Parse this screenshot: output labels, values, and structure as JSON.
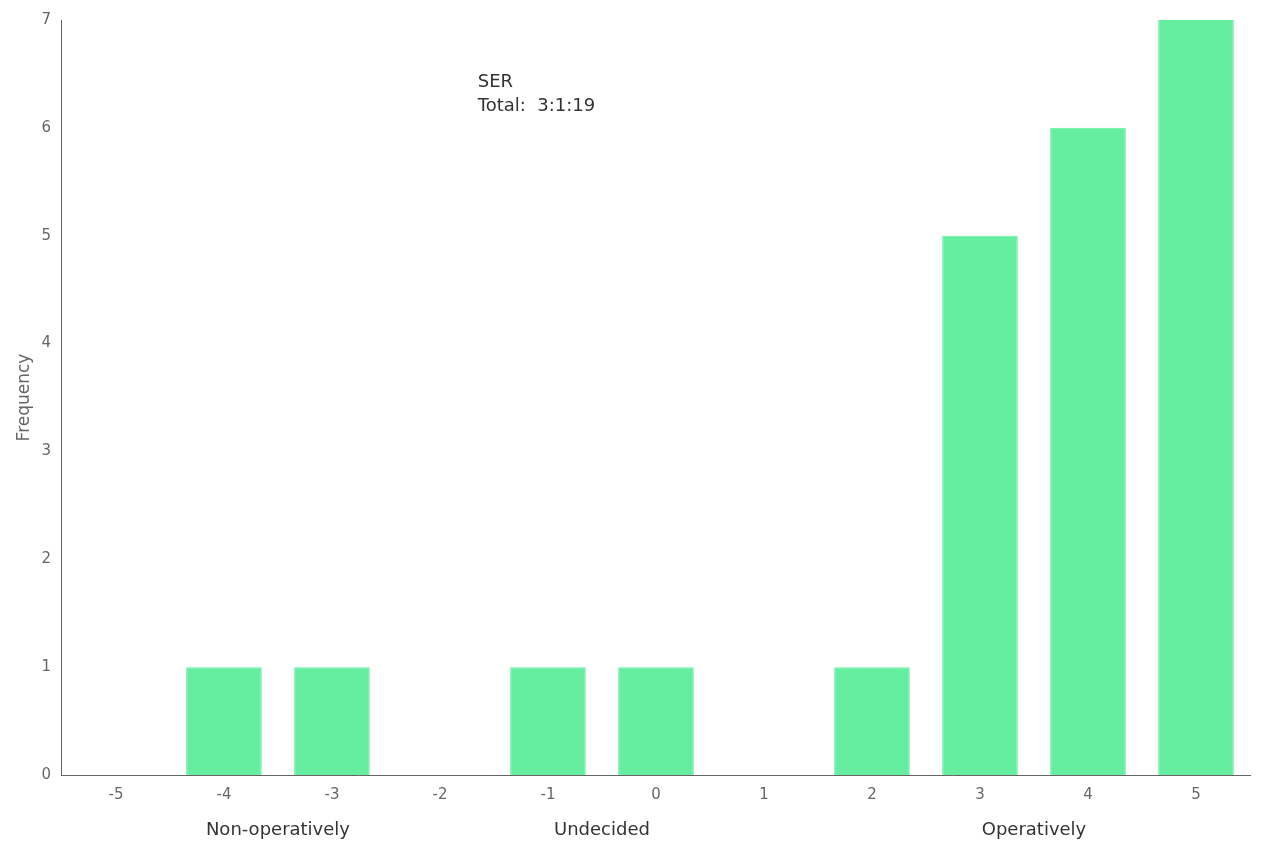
{
  "chart_data": {
    "type": "bar",
    "x": [
      -5,
      -4,
      -3,
      -2,
      -1,
      0,
      1,
      2,
      3,
      4,
      5
    ],
    "values": [
      0,
      1,
      1,
      0,
      1,
      1,
      0,
      1,
      5,
      6,
      7
    ],
    "color": "#66EEA0",
    "ylabel": "Frequency",
    "xlim": [
      -5.5,
      5.5
    ],
    "xticks": [
      -5,
      -4,
      -3,
      -2,
      -1,
      0,
      1,
      2,
      3,
      4,
      5
    ],
    "ylim": [
      0,
      7
    ],
    "yticks": [
      0,
      1,
      2,
      3,
      4,
      5,
      6,
      7
    ],
    "grid": false,
    "annotations": [
      {
        "text": "SER\nTotal:  3:1:19"
      },
      {
        "text": "Non-operatively",
        "x": -3.5
      },
      {
        "text": "Undecided",
        "x": -0.5
      },
      {
        "text": "Operatively",
        "x": 3.5
      }
    ]
  }
}
